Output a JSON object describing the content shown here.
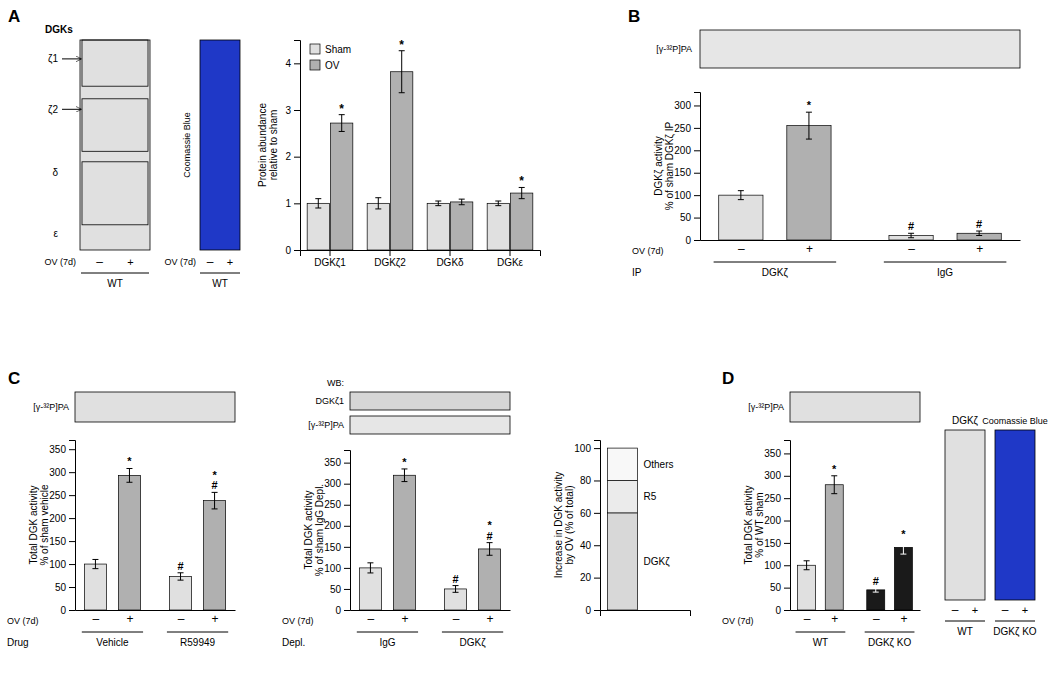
{
  "chart_data": [
    {
      "type": "bar",
      "title": "A",
      "categories": [
        "DGKζ1",
        "DGKζ2",
        "DGKδ",
        "DGKε"
      ],
      "series": [
        {
          "name": "Sham",
          "color": "#e0e0e0",
          "values": [
            1.0,
            1.0,
            1.0,
            1.0
          ],
          "errors": [
            0.1,
            0.12,
            0.05,
            0.05
          ],
          "significance": [
            null,
            null,
            null,
            null
          ]
        },
        {
          "name": "OV",
          "color": "#b0b0b0",
          "values": [
            2.72,
            3.82,
            1.03,
            1.22
          ],
          "errors": [
            0.18,
            0.45,
            0.06,
            0.12
          ],
          "significance": [
            "*",
            "*",
            null,
            "*"
          ]
        }
      ],
      "ylabel": "Protein abundance\nrelative to sham",
      "ylim": [
        0,
        4.5
      ],
      "yticks": [
        0,
        1,
        2,
        3,
        4
      ],
      "legend": "upper left",
      "blot_labels": [
        "DGKs",
        "ζ1",
        "ζ2",
        "δ",
        "ε",
        "–",
        "+",
        "OV (7d)",
        "WT",
        "Coomassie Blue",
        "–",
        "+",
        "OV (7d)",
        "WT"
      ]
    },
    {
      "type": "bar",
      "title": "B",
      "categories": [
        "–",
        "+",
        "–",
        "+"
      ],
      "values": [
        100,
        255,
        10,
        15
      ],
      "errors": [
        10,
        30,
        5,
        5
      ],
      "colors": [
        "#e0e0e0",
        "#b0b0b0",
        "#e0e0e0",
        "#b0b0b0"
      ],
      "significance": [
        null,
        "*",
        "#",
        "#"
      ],
      "ylabel": "DGKζ activity\n% of sham DGKζ IP",
      "ylim": [
        0,
        330
      ],
      "yticks": [
        0,
        50,
        100,
        150,
        200,
        250,
        300
      ],
      "group_labels": [
        "DGKζ",
        "IgG"
      ],
      "row_labels": [
        "OV (7d)",
        "IP"
      ],
      "blot_labels": [
        "[γ-³²P]PA"
      ]
    },
    {
      "type": "bar",
      "title": "C",
      "categories": [
        "–",
        "+",
        "–",
        "+"
      ],
      "values": [
        100,
        293,
        73,
        238
      ],
      "errors": [
        10,
        15,
        8,
        18
      ],
      "colors": [
        "#e0e0e0",
        "#b0b0b0",
        "#e0e0e0",
        "#b0b0b0"
      ],
      "significance": [
        null,
        "*",
        "#",
        "*\n#"
      ],
      "ylabel": "Total DGK activity\n% of sham vehicle",
      "ylim": [
        0,
        370
      ],
      "yticks": [
        0,
        50,
        100,
        150,
        200,
        250,
        300,
        350
      ],
      "group_labels": [
        "Vehicle",
        "R59949"
      ],
      "row_labels": [
        "OV (7d)",
        "Drug"
      ],
      "blot_labels": [
        "[γ-³²P]PA"
      ]
    },
    {
      "type": "bar",
      "categories": [
        "–",
        "+",
        "–",
        "+"
      ],
      "values": [
        100,
        320,
        50,
        145
      ],
      "errors": [
        12,
        15,
        8,
        15
      ],
      "colors": [
        "#e0e0e0",
        "#b0b0b0",
        "#e0e0e0",
        "#b0b0b0"
      ],
      "significance": [
        null,
        "*",
        "#",
        "*\n#"
      ],
      "ylabel": "Total DGK activity\n% of sham IgG Depl.",
      "ylim": [
        0,
        380
      ],
      "yticks": [
        0,
        50,
        100,
        150,
        200,
        250,
        300,
        350
      ],
      "group_labels": [
        "IgG",
        "DGKζ"
      ],
      "row_labels": [
        "OV (7d)",
        "Depl."
      ],
      "blot_labels": [
        "WB:",
        "DGKζ1",
        "[γ-³²P]PA"
      ]
    },
    {
      "type": "bar",
      "stacked": true,
      "categories": [
        null
      ],
      "series": [
        {
          "name": "DGKζ",
          "color": "#d8d8d8",
          "values": [
            60
          ]
        },
        {
          "name": "R5",
          "color": "#ebebeb",
          "values": [
            20
          ]
        },
        {
          "name": "Others",
          "color": "#f8f8f8",
          "values": [
            20
          ]
        }
      ],
      "ylabel": "Increase in DGK activity\nby OV (% of total)",
      "ylim": [
        0,
        105
      ],
      "yticks": [
        0,
        20,
        40,
        60,
        80,
        100
      ],
      "tick_labels": "y"
    },
    {
      "type": "bar",
      "title": "D",
      "categories": [
        "–",
        "+",
        "–",
        "+"
      ],
      "values": [
        100,
        280,
        45,
        140
      ],
      "errors": [
        10,
        20,
        5,
        15
      ],
      "colors": [
        "#e0e0e0",
        "#b0b0b0",
        "#1a1a1a",
        "#1a1a1a"
      ],
      "significance": [
        null,
        "*",
        "#",
        "*"
      ],
      "ylabel": "Total DGK activity\n% of WT sham",
      "ylim": [
        0,
        380
      ],
      "yticks": [
        0,
        50,
        100,
        150,
        200,
        250,
        300,
        350
      ],
      "group_labels": [
        "WT",
        "DGKζ KO"
      ],
      "row_labels": [
        "OV (7d)"
      ],
      "blot_labels": [
        "[γ-³²P]PA",
        "DGKζ",
        "Coomassie Blue",
        "–",
        "+",
        "–",
        "+",
        "WT",
        "DGKζ KO"
      ]
    }
  ]
}
